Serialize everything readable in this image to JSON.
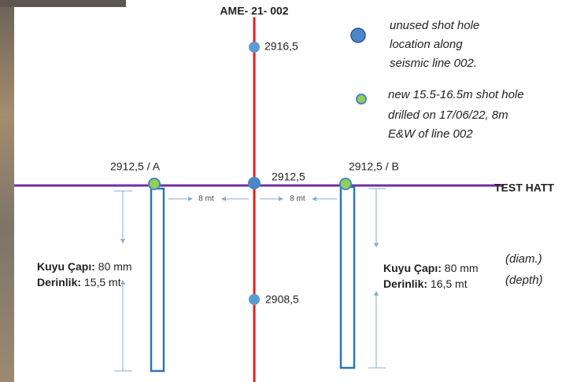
{
  "title": "AME- 21- 002",
  "line_label": "TEST HATT",
  "legend": [
    {
      "lines": [
        "unused shot hole",
        "location along",
        "seismic line 002."
      ]
    },
    {
      "lines": [
        "new 15.5-16.5m shot hole",
        "drilled on 17/06/22, 8m",
        "E&W of line 002"
      ]
    }
  ],
  "points": [
    {
      "label": "2916,5"
    },
    {
      "label": "2912,5"
    },
    {
      "label": "2908,5"
    }
  ],
  "holes": [
    {
      "label": "2912,5 / A",
      "diameter_key": "Kuyu Çapı:",
      "diameter": "80 mm",
      "depth_key": "Derinlik:",
      "depth": "15,5 mt"
    },
    {
      "label": "2912,5 / B",
      "diameter_key": "Kuyu Çapı:",
      "diameter": "80 mm",
      "depth_key": "Derinlik:",
      "depth": "16,5 mt"
    }
  ],
  "spacing": [
    "8 mt",
    "8 mt"
  ],
  "notes": [
    "(diam.)",
    "(depth)"
  ]
}
